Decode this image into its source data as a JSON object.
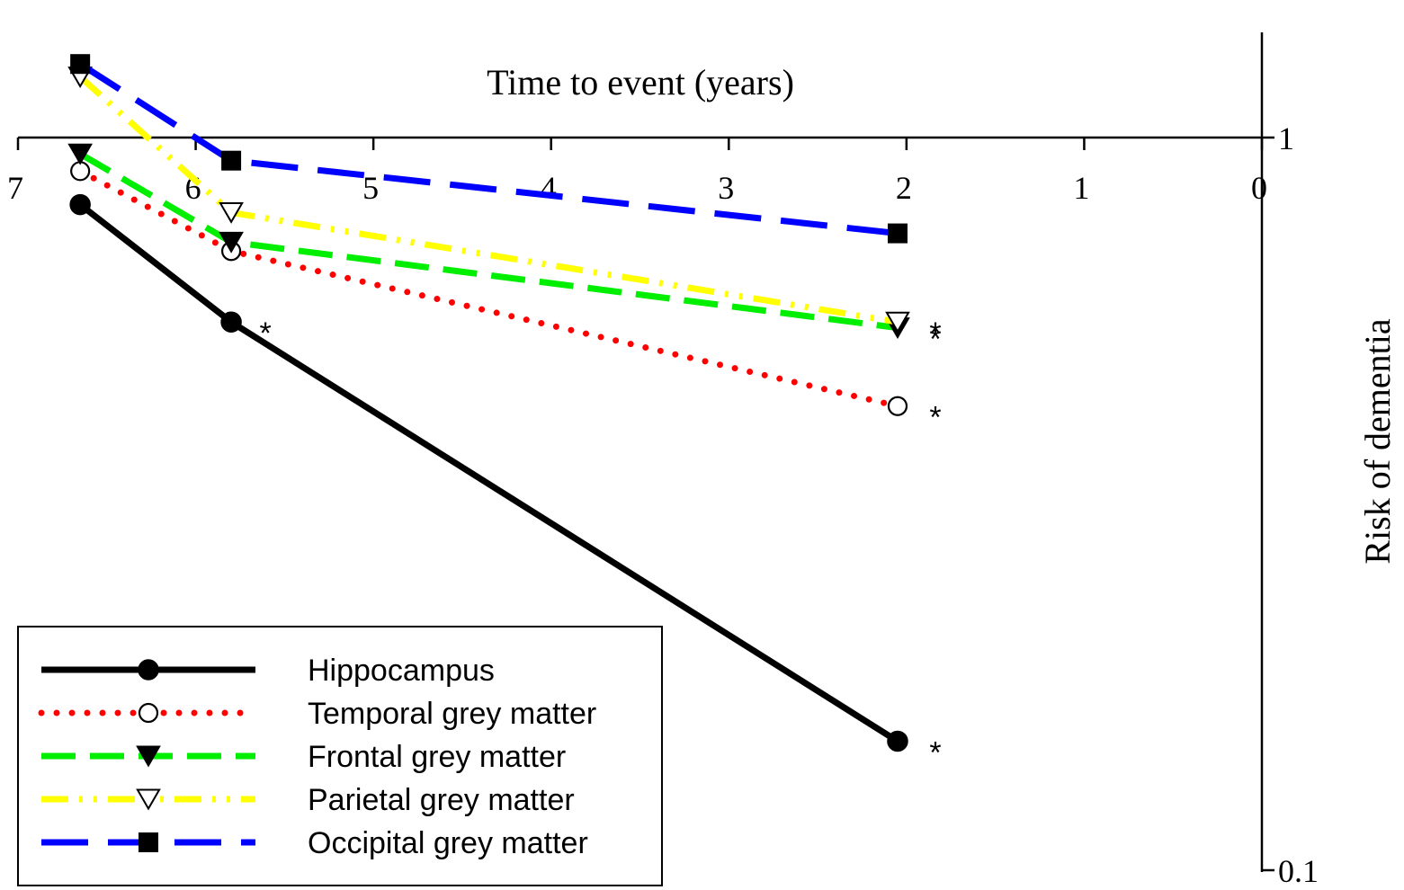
{
  "chart_data": {
    "type": "line",
    "xlabel": "Time to event (years)",
    "ylabel": "Risk of dementia",
    "xlim": [
      7,
      0
    ],
    "x_reversed": true,
    "ylim": [
      0.1,
      1.0
    ],
    "y_log_scale": true,
    "x_ticks": [
      "7",
      "6",
      "5",
      "4",
      "3",
      "2",
      "1",
      "0"
    ],
    "y_ticks": [
      "1",
      "0.1"
    ],
    "grid": false,
    "legend_position": "bottom-left",
    "series": [
      {
        "name": "Hippocampus",
        "color": "#000000",
        "marker": "filled-circle",
        "line_style": "solid",
        "x": [
          6.65,
          5.8,
          2.05
        ],
        "y": [
          0.81,
          0.56,
          0.15
        ],
        "significance": [
          "",
          "*",
          "*"
        ]
      },
      {
        "name": "Temporal grey matter",
        "color": "#ff0000",
        "marker": "open-circle",
        "line_style": "dotted",
        "x": [
          6.65,
          5.8,
          2.05
        ],
        "y": [
          0.9,
          0.7,
          0.43
        ],
        "significance": [
          "",
          "",
          "*"
        ]
      },
      {
        "name": "Frontal grey matter",
        "color": "#00ee00",
        "marker": "filled-triangle-down",
        "line_style": "dashed",
        "x": [
          6.65,
          5.8,
          2.05
        ],
        "y": [
          0.95,
          0.72,
          0.55
        ],
        "significance": [
          "",
          "",
          "*"
        ]
      },
      {
        "name": "Parietal grey matter",
        "color": "#ffff00",
        "marker": "open-triangle-down",
        "line_style": "dash-dot-dot",
        "x": [
          6.65,
          5.8,
          2.05
        ],
        "y": [
          1.21,
          0.79,
          0.56
        ],
        "significance": [
          "",
          "",
          "*"
        ]
      },
      {
        "name": "Occipital grey matter",
        "color": "#0000ff",
        "marker": "filled-square",
        "line_style": "long-dash",
        "x": [
          6.65,
          5.8,
          2.05
        ],
        "y": [
          1.26,
          0.93,
          0.74
        ],
        "significance": [
          "",
          "",
          ""
        ]
      }
    ]
  }
}
